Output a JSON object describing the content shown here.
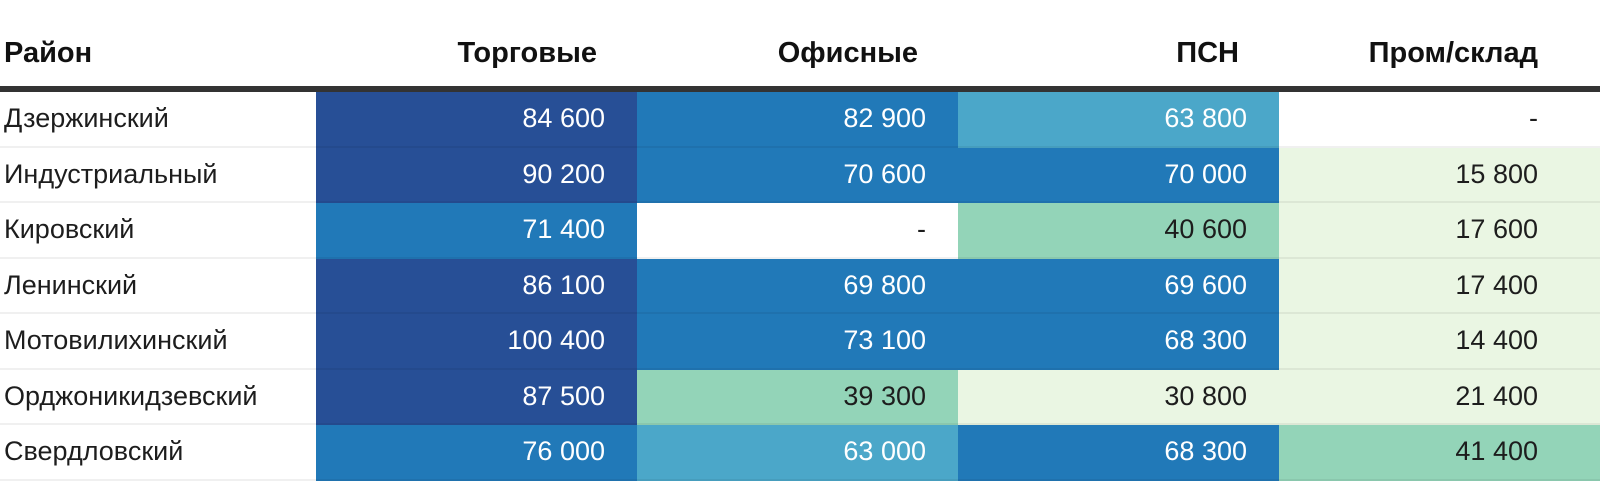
{
  "palette": {
    "blue900": "#274f96",
    "blue600": "#2179b8",
    "blue400": "#4ba7c9",
    "green400": "#93d4b8",
    "green100": "#eaf6e3",
    "none": "#ffffff"
  },
  "text_on": {
    "blue900": "light",
    "blue600": "light",
    "blue400": "light",
    "green400": "dark",
    "green100": "dark",
    "none": "dark"
  },
  "table": {
    "columns": [
      {
        "label": "Район"
      },
      {
        "label": "Торговые"
      },
      {
        "label": "Офисные"
      },
      {
        "label": "ПСН"
      },
      {
        "label": "Пром/склад"
      }
    ],
    "rows": [
      {
        "district": "Дзержинский",
        "cells": [
          {
            "text": "84 600",
            "bg": "blue900"
          },
          {
            "text": "82 900",
            "bg": "blue600"
          },
          {
            "text": "63 800",
            "bg": "blue400"
          },
          {
            "text": "-",
            "bg": "none"
          }
        ]
      },
      {
        "district": "Индустриальный",
        "cells": [
          {
            "text": "90 200",
            "bg": "blue900"
          },
          {
            "text": "70 600",
            "bg": "blue600"
          },
          {
            "text": "70 000",
            "bg": "blue600"
          },
          {
            "text": "15 800",
            "bg": "green100"
          }
        ]
      },
      {
        "district": "Кировский",
        "cells": [
          {
            "text": "71 400",
            "bg": "blue600"
          },
          {
            "text": "-",
            "bg": "none"
          },
          {
            "text": "40 600",
            "bg": "green400"
          },
          {
            "text": "17 600",
            "bg": "green100"
          }
        ]
      },
      {
        "district": "Ленинский",
        "cells": [
          {
            "text": "86 100",
            "bg": "blue900"
          },
          {
            "text": "69 800",
            "bg": "blue600"
          },
          {
            "text": "69 600",
            "bg": "blue600"
          },
          {
            "text": "17 400",
            "bg": "green100"
          }
        ]
      },
      {
        "district": "Мотовилихинский",
        "cells": [
          {
            "text": "100 400",
            "bg": "blue900"
          },
          {
            "text": "73 100",
            "bg": "blue600"
          },
          {
            "text": "68 300",
            "bg": "blue600"
          },
          {
            "text": "14 400",
            "bg": "green100"
          }
        ]
      },
      {
        "district": "Орджоникидзевский",
        "cells": [
          {
            "text": "87 500",
            "bg": "blue900"
          },
          {
            "text": "39 300",
            "bg": "green400"
          },
          {
            "text": "30 800",
            "bg": "green100"
          },
          {
            "text": "21 400",
            "bg": "green100"
          }
        ]
      },
      {
        "district": "Свердловский",
        "cells": [
          {
            "text": "76 000",
            "bg": "blue600"
          },
          {
            "text": "63 000",
            "bg": "blue400"
          },
          {
            "text": "68 300",
            "bg": "blue600"
          },
          {
            "text": "41 400",
            "bg": "green400"
          }
        ]
      }
    ]
  },
  "chart_data": {
    "type": "heatmap",
    "title": "",
    "columns": [
      "Торговые",
      "Офисные",
      "ПСН",
      "Пром/склад"
    ],
    "rows": [
      "Дзержинский",
      "Индустриальный",
      "Кировский",
      "Ленинский",
      "Мотовилихинский",
      "Орджоникидзевский",
      "Свердловский"
    ],
    "values": [
      [
        84600,
        82900,
        63800,
        null
      ],
      [
        90200,
        70600,
        70000,
        15800
      ],
      [
        71400,
        null,
        40600,
        17600
      ],
      [
        86100,
        69800,
        69600,
        17400
      ],
      [
        100400,
        73100,
        68300,
        14400
      ],
      [
        87500,
        39300,
        30800,
        21400
      ],
      [
        76000,
        63000,
        68300,
        41400
      ]
    ],
    "missing_marker": "-",
    "color_scale_buckets": [
      {
        "min": 84000,
        "color": "#274f96"
      },
      {
        "min": 66000,
        "color": "#2179b8"
      },
      {
        "min": 60000,
        "color": "#4ba7c9"
      },
      {
        "min": 35000,
        "color": "#93d4b8"
      },
      {
        "min": 0,
        "color": "#eaf6e3"
      }
    ],
    "legend": "none",
    "grid": "off"
  }
}
